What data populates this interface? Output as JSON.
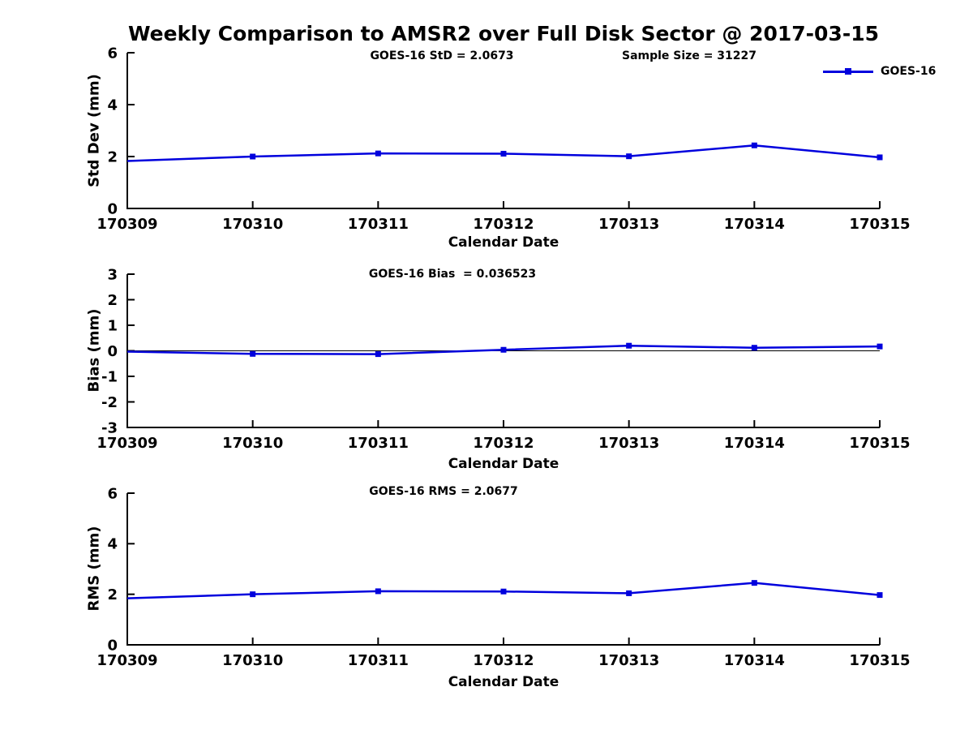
{
  "title": "Weekly Comparison to AMSR2 over Full Disk Sector @ 2017-03-15",
  "legend": {
    "label": "GOES-16"
  },
  "colors": {
    "series": "#0000DD",
    "axis": "#000000"
  },
  "chart_data": [
    {
      "type": "line",
      "name": "std-dev",
      "ylabel": "Std Dev (mm)",
      "xlabel": "Calendar Date",
      "ylim": [
        0,
        6
      ],
      "yticks": [
        0,
        2,
        4,
        6
      ],
      "grid": false,
      "legend_position": "top-right-outside",
      "categories": [
        "170309",
        "170310",
        "170311",
        "170312",
        "170313",
        "170314",
        "170315"
      ],
      "series": [
        {
          "name": "GOES-16",
          "color": "#0000DD",
          "marker": "square",
          "values": [
            1.83,
            2.0,
            2.12,
            2.11,
            2.01,
            2.43,
            1.97
          ]
        }
      ],
      "annotations": [
        {
          "text": "GOES-16 StD = 2.0673"
        },
        {
          "text": "Sample Size = 31227"
        }
      ],
      "zero_line": false
    },
    {
      "type": "line",
      "name": "bias",
      "ylabel": "Bias (mm)",
      "xlabel": "Calendar Date",
      "ylim": [
        -3,
        3
      ],
      "yticks": [
        -3,
        -2,
        -1,
        0,
        1,
        2,
        3
      ],
      "grid": false,
      "categories": [
        "170309",
        "170310",
        "170311",
        "170312",
        "170313",
        "170314",
        "170315"
      ],
      "series": [
        {
          "name": "GOES-16",
          "color": "#0000DD",
          "marker": "square",
          "values": [
            -0.03,
            -0.12,
            -0.13,
            0.04,
            0.2,
            0.12,
            0.17
          ]
        }
      ],
      "annotations": [
        {
          "text": "GOES-16 Bias  = 0.036523"
        }
      ],
      "zero_line": true
    },
    {
      "type": "line",
      "name": "rms",
      "ylabel": "RMS (mm)",
      "xlabel": "Calendar Date",
      "ylim": [
        0,
        6
      ],
      "yticks": [
        0,
        2,
        4,
        6
      ],
      "grid": false,
      "categories": [
        "170309",
        "170310",
        "170311",
        "170312",
        "170313",
        "170314",
        "170315"
      ],
      "series": [
        {
          "name": "GOES-16",
          "color": "#0000DD",
          "marker": "square",
          "values": [
            1.84,
            2.0,
            2.12,
            2.11,
            2.04,
            2.45,
            1.97
          ]
        }
      ],
      "annotations": [
        {
          "text": "GOES-16 RMS = 2.0677"
        }
      ],
      "zero_line": false
    }
  ]
}
